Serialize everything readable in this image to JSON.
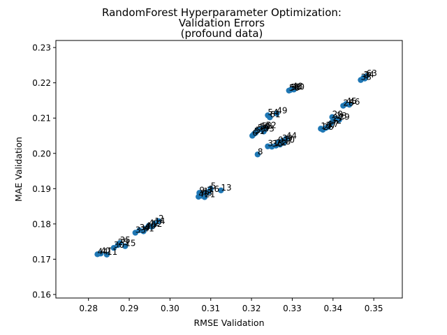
{
  "chart_data": {
    "type": "scatter",
    "title": [
      "RandomForest Hyperparameter Optimization:",
      "Validation Errors",
      "(profound data)"
    ],
    "xlabel": "RMSE Validation",
    "ylabel": "MAE Validation",
    "xlim": [
      0.272,
      0.357
    ],
    "ylim": [
      0.159,
      0.232
    ],
    "xticks": [
      0.28,
      0.29,
      0.3,
      0.31,
      0.32,
      0.33,
      0.34,
      0.35
    ],
    "xtick_labels": [
      "0.28",
      "0.29",
      "0.30",
      "0.31",
      "0.32",
      "0.33",
      "0.34",
      "0.35"
    ],
    "yticks": [
      0.16,
      0.17,
      0.18,
      0.19,
      0.2,
      0.21,
      0.22,
      0.23
    ],
    "ytick_labels": [
      "0.16",
      "0.17",
      "0.18",
      "0.19",
      "0.20",
      "0.21",
      "0.22",
      "0.23"
    ],
    "grid": false,
    "point_color": "#1f77b4",
    "points": [
      {
        "label": "44",
        "x": 0.2822,
        "y": 0.1714
      },
      {
        "label": "47",
        "x": 0.283,
        "y": 0.1716
      },
      {
        "label": "11",
        "x": 0.2845,
        "y": 0.1713
      },
      {
        "label": "30",
        "x": 0.2862,
        "y": 0.1732
      },
      {
        "label": "25",
        "x": 0.2872,
        "y": 0.174
      },
      {
        "label": "35",
        "x": 0.2877,
        "y": 0.1746
      },
      {
        "label": "15",
        "x": 0.289,
        "y": 0.1737
      },
      {
        "label": "33",
        "x": 0.2915,
        "y": 0.1775
      },
      {
        "label": "34",
        "x": 0.2925,
        "y": 0.1782
      },
      {
        "label": "41",
        "x": 0.2935,
        "y": 0.1779
      },
      {
        "label": "40",
        "x": 0.294,
        "y": 0.1787
      },
      {
        "label": "42",
        "x": 0.2948,
        "y": 0.1795
      },
      {
        "label": "12",
        "x": 0.2955,
        "y": 0.1792
      },
      {
        "label": "14",
        "x": 0.2962,
        "y": 0.18
      },
      {
        "label": "2",
        "x": 0.2972,
        "y": 0.1808
      },
      {
        "label": "9",
        "x": 0.3072,
        "y": 0.1888
      },
      {
        "label": "1",
        "x": 0.3082,
        "y": 0.1885
      },
      {
        "label": "3",
        "x": 0.309,
        "y": 0.1888
      },
      {
        "label": "16",
        "x": 0.3095,
        "y": 0.1891
      },
      {
        "label": "5",
        "x": 0.31,
        "y": 0.19
      },
      {
        "label": "4",
        "x": 0.307,
        "y": 0.1877
      },
      {
        "label": "43",
        "x": 0.3078,
        "y": 0.188
      },
      {
        "label": "21",
        "x": 0.3085,
        "y": 0.1876
      },
      {
        "label": "13",
        "x": 0.3125,
        "y": 0.1895
      },
      {
        "label": "6",
        "x": 0.3202,
        "y": 0.205
      },
      {
        "label": "51",
        "x": 0.3206,
        "y": 0.2055
      },
      {
        "label": "57",
        "x": 0.321,
        "y": 0.2058
      },
      {
        "label": "59",
        "x": 0.3215,
        "y": 0.2065
      },
      {
        "label": "55",
        "x": 0.322,
        "y": 0.2068
      },
      {
        "label": "58",
        "x": 0.3225,
        "y": 0.207
      },
      {
        "label": "52",
        "x": 0.3235,
        "y": 0.2072
      },
      {
        "label": "53",
        "x": 0.323,
        "y": 0.2062
      },
      {
        "label": "8",
        "x": 0.3215,
        "y": 0.1997
      },
      {
        "label": "31",
        "x": 0.324,
        "y": 0.202
      },
      {
        "label": "36",
        "x": 0.325,
        "y": 0.2019
      },
      {
        "label": "22",
        "x": 0.326,
        "y": 0.2022
      },
      {
        "label": "18",
        "x": 0.327,
        "y": 0.2025
      },
      {
        "label": "10",
        "x": 0.328,
        "y": 0.203
      },
      {
        "label": "39",
        "x": 0.3275,
        "y": 0.2035
      },
      {
        "label": "0",
        "x": 0.3265,
        "y": 0.203
      },
      {
        "label": "44",
        "x": 0.3285,
        "y": 0.2042
      },
      {
        "label": "54",
        "x": 0.324,
        "y": 0.2108
      },
      {
        "label": "61",
        "x": 0.3245,
        "y": 0.2102
      },
      {
        "label": "49",
        "x": 0.3262,
        "y": 0.2113
      },
      {
        "label": "48",
        "x": 0.33,
        "y": 0.2183
      },
      {
        "label": "50",
        "x": 0.3292,
        "y": 0.2178
      },
      {
        "label": "56",
        "x": 0.3296,
        "y": 0.218
      },
      {
        "label": "60",
        "x": 0.3304,
        "y": 0.2181
      },
      {
        "label": "19",
        "x": 0.337,
        "y": 0.207
      },
      {
        "label": "26",
        "x": 0.3375,
        "y": 0.2067
      },
      {
        "label": "37",
        "x": 0.3382,
        "y": 0.2072
      },
      {
        "label": "17",
        "x": 0.3388,
        "y": 0.2075
      },
      {
        "label": "32",
        "x": 0.3395,
        "y": 0.2085
      },
      {
        "label": "27",
        "x": 0.34,
        "y": 0.2092
      },
      {
        "label": "23",
        "x": 0.3408,
        "y": 0.2098
      },
      {
        "label": "20",
        "x": 0.3398,
        "y": 0.2103
      },
      {
        "label": "29",
        "x": 0.3415,
        "y": 0.2095
      },
      {
        "label": "28",
        "x": 0.3425,
        "y": 0.2135
      },
      {
        "label": "45",
        "x": 0.3432,
        "y": 0.214
      },
      {
        "label": "46",
        "x": 0.344,
        "y": 0.2138
      },
      {
        "label": "38",
        "x": 0.3468,
        "y": 0.2208
      },
      {
        "label": "24",
        "x": 0.3475,
        "y": 0.2215
      },
      {
        "label": "7",
        "x": 0.3478,
        "y": 0.2212
      },
      {
        "label": "63",
        "x": 0.3482,
        "y": 0.2219
      }
    ]
  }
}
